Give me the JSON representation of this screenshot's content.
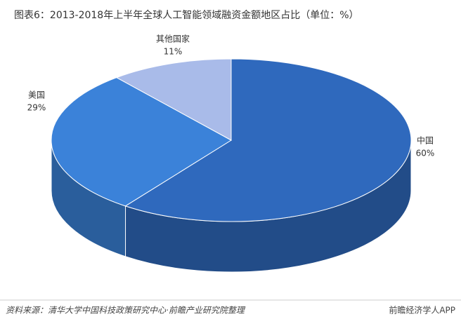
{
  "chart_data": {
    "type": "pie3d",
    "title": "图表6：2013-2018年上半年全球人工智能领域融资金额地区占比（单位：%）",
    "categories": [
      "中国",
      "美国",
      "其他国家"
    ],
    "values": [
      60,
      29,
      11
    ],
    "value_labels": [
      "60%",
      "29%",
      "11%"
    ],
    "colors": [
      "#2f69bd",
      "#3b82d9",
      "#a9bbe9"
    ],
    "source": "资料来源：清华大学中国科技政策研究中心·前瞻产业研究院整理",
    "brand": "前瞻经济学人APP"
  }
}
